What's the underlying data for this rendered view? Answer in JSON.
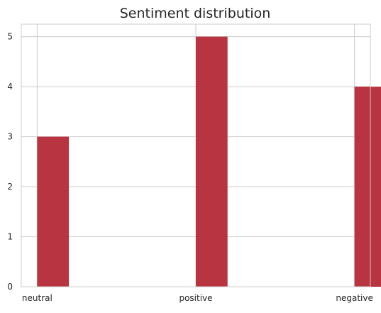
{
  "chart_data": {
    "type": "bar",
    "title": "Sentiment distribution",
    "xlabel": "",
    "ylabel": "",
    "categories": [
      "neutral",
      "positive",
      "negative"
    ],
    "values": [
      3,
      5,
      4
    ],
    "x_positions": [
      0,
      1,
      2
    ],
    "xlim": [
      -0.1,
      2.1
    ],
    "ylim": [
      0,
      5.25
    ],
    "yticks": [
      0,
      1,
      2,
      3,
      4,
      5
    ],
    "bar_color": "#b83440",
    "grid": true,
    "legend": "none"
  }
}
